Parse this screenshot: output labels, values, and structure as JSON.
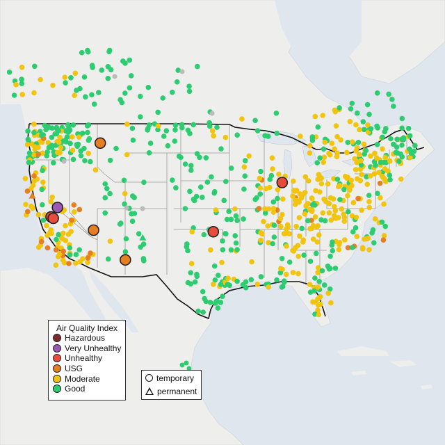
{
  "legend": {
    "title": "Air Quality Index",
    "categories": [
      {
        "label": "Hazardous",
        "color": "#7e2a2a"
      },
      {
        "label": "Very Unhealthy",
        "color": "#9b59b6"
      },
      {
        "label": "Unhealthy",
        "color": "#e74c3c"
      },
      {
        "label": "USG",
        "color": "#e67e22"
      },
      {
        "label": "Moderate",
        "color": "#f1c40f"
      },
      {
        "label": "Good",
        "color": "#2ecc71"
      }
    ],
    "monitor_types": [
      {
        "label": "temporary",
        "shape": "circle"
      },
      {
        "label": "permanent",
        "shape": "triangle"
      }
    ]
  },
  "colors": {
    "land": "#eeeeec",
    "water": "#dfe6ee",
    "state_lines": "#9a9a9a",
    "us_border": "#111111",
    "no_data_sensor": "#bbbbbb"
  },
  "notable_monitors": [
    {
      "category": "Very Unhealthy",
      "lon": -120.0,
      "lat": 39.2
    },
    {
      "category": "Unhealthy",
      "lon": -121.1,
      "lat": 38.1
    },
    {
      "category": "Unhealthy",
      "lon": -120.8,
      "lat": 37.9
    },
    {
      "category": "Unhealthy",
      "lon": -87.6,
      "lat": 41.8
    },
    {
      "category": "Unhealthy",
      "lon": -97.4,
      "lat": 35.5
    },
    {
      "category": "USG",
      "lon": -113.1,
      "lat": 46.9
    },
    {
      "category": "USG",
      "lon": -115.1,
      "lat": 36.1
    },
    {
      "category": "USG",
      "lon": -110.7,
      "lat": 32.2
    }
  ],
  "permanent_monitors": [
    {
      "category": "USG",
      "lon": -123.4,
      "lat": 40.9
    },
    {
      "category": "Good",
      "lon": -107.9,
      "lat": 34.9
    }
  ]
}
